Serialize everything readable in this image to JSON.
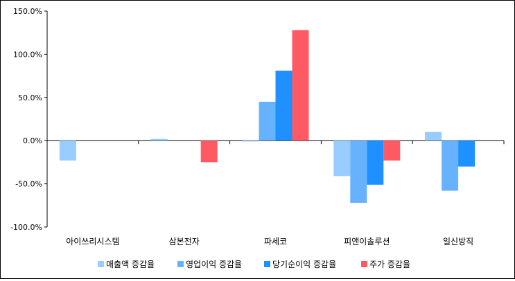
{
  "chart_data": {
    "type": "bar",
    "title": "",
    "xlabel": "",
    "ylabel": "",
    "categories": [
      "아이쓰리시스템",
      "삼본전자",
      "파세코",
      "피앤이솔루션",
      "일신방직"
    ],
    "series": [
      {
        "name": "매출액 증감율",
        "color": "#99ccff",
        "values": [
          -23,
          2,
          -1,
          -41,
          10
        ]
      },
      {
        "name": "영업이익 증감율",
        "color": "#66b2ff",
        "values": [
          0,
          0,
          45,
          -72,
          -58
        ]
      },
      {
        "name": "당기순이익 증감율",
        "color": "#1e90ff",
        "values": [
          0,
          0,
          81,
          -51,
          -30
        ]
      },
      {
        "name": "주가 증감율",
        "color": "#ff5a64",
        "values": [
          0,
          -25,
          128,
          -23,
          0
        ]
      }
    ],
    "ylim": [
      -100,
      150
    ],
    "yticks": [
      150,
      100,
      50,
      0,
      -50,
      -100
    ],
    "ytick_labels": [
      "150.0%",
      "100.0%",
      "50.0%",
      "0.0%",
      "-50.0%",
      "-100.0%"
    ],
    "grid": false,
    "legend": "bottom"
  }
}
